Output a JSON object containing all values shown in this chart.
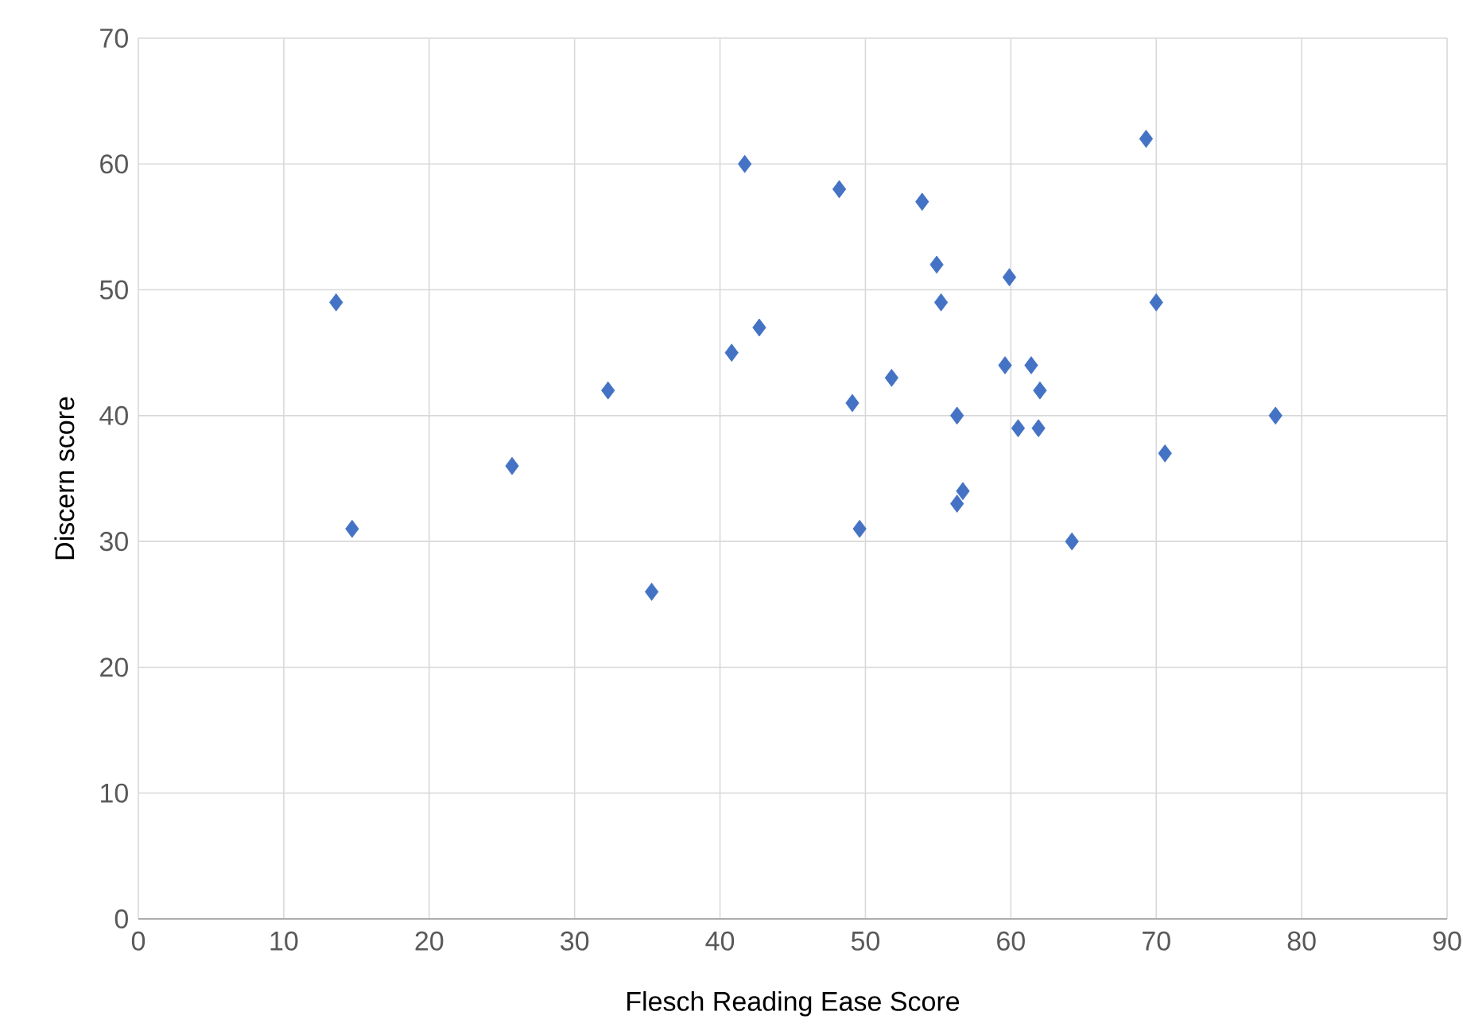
{
  "chart_data": {
    "type": "scatter",
    "xlabel": "Flesch Reading Ease Score",
    "ylabel": "Discern score",
    "x": [
      13.6,
      14.7,
      25.7,
      32.3,
      35.3,
      40.8,
      41.7,
      42.7,
      48.2,
      49.1,
      49.6,
      51.8,
      53.9,
      54.9,
      55.2,
      56.3,
      56.3,
      56.7,
      59.9,
      59.6,
      60.5,
      61.4,
      62.0,
      61.9,
      64.2,
      69.3,
      70.0,
      70.6,
      78.2
    ],
    "values": [
      49,
      31,
      36,
      42,
      26,
      45,
      60,
      47,
      58,
      41,
      31,
      43,
      57,
      52,
      49,
      40,
      33,
      34,
      51,
      44,
      39,
      44,
      42,
      39,
      30,
      62,
      49,
      37,
      40
    ],
    "color": "#4472c4",
    "marker": "diamond",
    "grid": true,
    "xlim": [
      0,
      90
    ],
    "xticks": [
      0,
      10,
      20,
      30,
      40,
      50,
      60,
      70,
      80,
      90
    ],
    "ylim": [
      0,
      70
    ],
    "yticks": [
      0,
      10,
      20,
      30,
      40,
      50,
      60,
      70
    ]
  }
}
